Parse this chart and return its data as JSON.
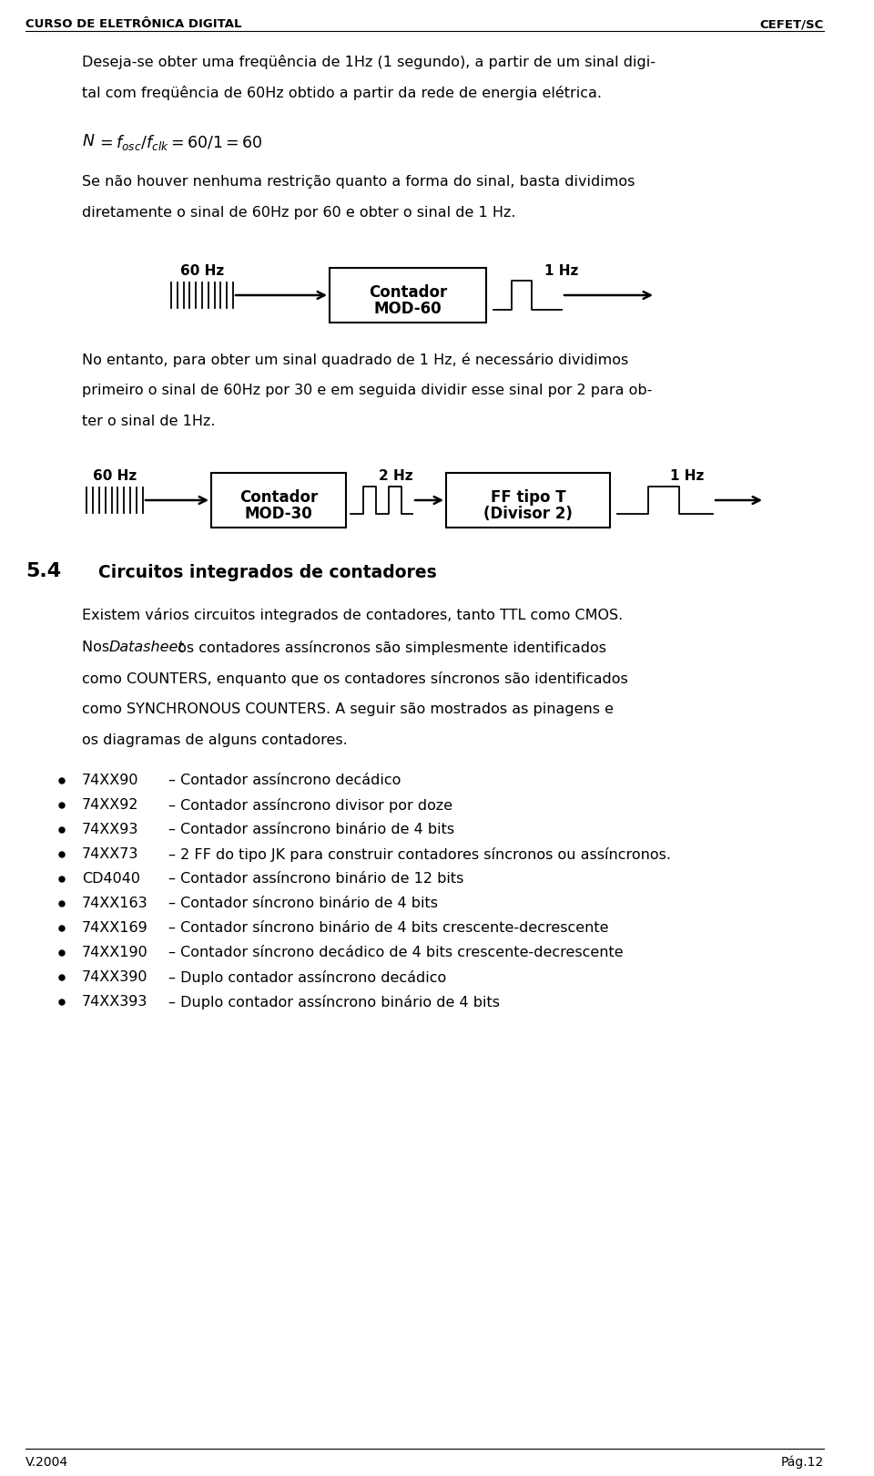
{
  "bg_color": "#ffffff",
  "text_color": "#000000",
  "header_left": "CURSO DE ELETRÔNICA DIGITAL",
  "header_right": "CEFET/SC",
  "footer_left": "V.2004",
  "footer_right": "Pág.12",
  "para1_line1": "Deseja-se obter uma freqüência de 1Hz (1 segundo), a partir de um sinal digi-",
  "para1_line2": "tal com freqüência de 60Hz obtido a partir da rede de energia elétrica.",
  "para2_line1": "Se não houver nenhuma restrição quanto a forma do sinal, basta dividimos",
  "para2_line2": "diretamente o sinal de 60Hz por 60 e obter o sinal de 1 Hz.",
  "diag1_label_in": "60 Hz",
  "diag1_box_line1": "Contador",
  "diag1_box_line2": "MOD-60",
  "diag1_label_out": "1 Hz",
  "para3_line1": "No entanto, para obter um sinal quadrado de 1 Hz, é necessário dividimos",
  "para3_line2": "primeiro o sinal de 60Hz por 30 e em seguida dividir esse sinal por 2 para ob-",
  "para3_line3": "ter o sinal de 1Hz.",
  "diag2_label_in": "60 Hz",
  "diag2_box1_line1": "Contador",
  "diag2_box1_line2": "MOD-30",
  "diag2_mid_label": "2 Hz",
  "diag2_box2_line1": "FF tipo T",
  "diag2_box2_line2": "(Divisor 2)",
  "diag2_label_out": "1 Hz",
  "section_num": "5.4",
  "section_title": "Circuitos integrados de contadores",
  "section_para1": "Existem vários circuitos integrados de contadores, tanto TTL como CMOS.",
  "section_para2_line1_pre": "Nos ",
  "section_para2_line1_italic": "Datasheet",
  "section_para2_line1_post": " os contadores assíncronos são simplesmente identificados",
  "section_para2_line2": "como COUNTERS, enquanto que os contadores síncronos são identificados",
  "section_para2_line3": "como SYNCHRONOUS COUNTERS. A seguir são mostrados as pinagens e",
  "section_para2_line4": "os diagramas de alguns contadores.",
  "bullets": [
    [
      "74XX90",
      "– Contador assíncrono decádico"
    ],
    [
      "74XX92",
      "– Contador assíncrono divisor por doze"
    ],
    [
      "74XX93",
      "– Contador assíncrono binário de 4 bits"
    ],
    [
      "74XX73",
      "– 2 FF do tipo JK para construir contadores síncronos ou assíncronos."
    ],
    [
      "CD4040",
      "– Contador assíncrono binário de 12 bits"
    ],
    [
      "74XX163",
      "– Contador síncrono binário de 4 bits"
    ],
    [
      "74XX169",
      "– Contador síncrono binário de 4 bits crescente-decrescente"
    ],
    [
      "74XX190",
      "– Contador síncrono decádico de 4 bits crescente-decrescente"
    ],
    [
      "74XX390",
      "– Duplo contador assíncrono decádico"
    ],
    [
      "74XX393",
      "– Duplo contador assíncrono binário de 4 bits"
    ]
  ]
}
